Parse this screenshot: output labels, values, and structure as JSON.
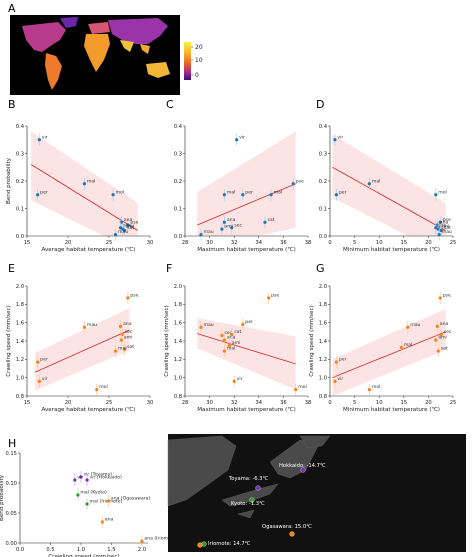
{
  "panel_letters": [
    "A",
    "B",
    "C",
    "D",
    "E",
    "F",
    "G",
    "H"
  ],
  "colorbar": {
    "ticks": [
      "20",
      "10",
      "0"
    ]
  },
  "map_labels": {
    "hokkaido": "Hokkaido: -14.7℃",
    "toyama": "Toyama: -6.3℃",
    "kyoto": "Kyoto: -1.3℃",
    "ogasawara": "Ogasawara: 15.0℃",
    "iriomote": "Iriomote: 14.7℃"
  },
  "colors": {
    "blue": "#1f77b4",
    "orange": "#ff7f0e",
    "fit": "#d62728",
    "band": "#fde4e4",
    "errbar": "#a6cff0",
    "errbar_orange": "#f9c797",
    "purple": "#7b2fbe",
    "green": "#2ca02c"
  },
  "chart_data": [
    {
      "id": "B",
      "type": "scatter",
      "xlabel": "Average habitat temperature (℃)",
      "ylabel": "Bend probability",
      "xlim": [
        15,
        30
      ],
      "ylim": [
        0,
        0.4
      ],
      "xticks": [
        "15",
        "20",
        "25",
        "30"
      ],
      "yticks": [
        "0.0",
        "0.1",
        "0.2",
        "0.3",
        "0.4"
      ],
      "point_labels": [
        "vir",
        "mol",
        "mal",
        "per",
        "ana",
        "pse",
        "sec",
        "ami",
        "sat",
        "mau"
      ],
      "x": [
        16.5,
        25.5,
        22.0,
        16.3,
        26.5,
        27.3,
        26.4,
        26.7,
        26.9,
        25.8
      ],
      "y": [
        0.35,
        0.15,
        0.19,
        0.15,
        0.05,
        0.04,
        0.03,
        0.025,
        0.02,
        0.005
      ],
      "fit": [
        [
          15.5,
          0.26
        ],
        [
          28.5,
          0.02
        ]
      ],
      "band": [
        [
          15.5,
          0.13,
          0.38
        ],
        [
          28.5,
          -0.06,
          0.12
        ]
      ]
    },
    {
      "id": "C",
      "type": "scatter",
      "xlabel": "Maximum habitat temperature (℃)",
      "ylabel": "",
      "xlim": [
        28,
        38
      ],
      "ylim": [
        0,
        0.4
      ],
      "xticks": [
        "28",
        "30",
        "32",
        "34",
        "36",
        "38"
      ],
      "yticks": [
        "0.0",
        "0.1",
        "0.2",
        "0.3",
        "0.4"
      ],
      "point_labels": [
        "vir",
        "mal",
        "pse",
        "per",
        "ana",
        "sat",
        "sec",
        "ami",
        "mau",
        "mol"
      ],
      "x": [
        32.2,
        31.2,
        36.8,
        32.7,
        31.2,
        34.5,
        31.8,
        31.0,
        29.3,
        35.0
      ],
      "y": [
        0.35,
        0.15,
        0.19,
        0.15,
        0.05,
        0.05,
        0.03,
        0.025,
        0.005,
        0.15
      ],
      "fit": [
        [
          29.0,
          0.04
        ],
        [
          37.0,
          0.19
        ]
      ],
      "band": [
        [
          29.0,
          -0.05,
          0.16
        ],
        [
          37.0,
          0.03,
          0.38
        ]
      ]
    },
    {
      "id": "D",
      "type": "scatter",
      "xlabel": "Minimum habitat temperature (℃)",
      "ylabel": "",
      "xlim": [
        0,
        25
      ],
      "ylim": [
        0,
        0.4
      ],
      "xticks": [
        "0",
        "5",
        "10",
        "15",
        "20",
        "25"
      ],
      "yticks": [
        "0.0",
        "0.1",
        "0.2",
        "0.3",
        "0.4"
      ],
      "point_labels": [
        "vir",
        "mal",
        "mol",
        "per",
        "pse",
        "ana",
        "sec",
        "ami",
        "sat",
        "mau"
      ],
      "x": [
        1.0,
        8.0,
        21.5,
        1.3,
        22.4,
        21.8,
        21.5,
        22.0,
        22.6,
        22.2
      ],
      "y": [
        0.35,
        0.19,
        0.15,
        0.15,
        0.05,
        0.04,
        0.03,
        0.025,
        0.02,
        0.005
      ],
      "fit": [
        [
          0.5,
          0.25
        ],
        [
          23.5,
          0.02
        ]
      ],
      "band": [
        [
          0.5,
          0.14,
          0.37
        ],
        [
          23.5,
          -0.07,
          0.12
        ]
      ]
    },
    {
      "id": "E",
      "type": "scatter",
      "xlabel": "Average habitat temperature (℃)",
      "ylabel": "Crawling speed (mm/sec)",
      "xlim": [
        15,
        30
      ],
      "ylim": [
        0.8,
        2.0
      ],
      "xticks": [
        "15",
        "20",
        "25",
        "30"
      ],
      "yticks": [
        "0.8",
        "1.0",
        "1.2",
        "1.4",
        "1.6",
        "1.8",
        "2.0"
      ],
      "point_labels": [
        "pse",
        "mau",
        "ana",
        "sec",
        "ami",
        "sat",
        "mal",
        "per",
        "vir",
        "mol"
      ],
      "x": [
        27.3,
        22.0,
        26.4,
        26.6,
        26.5,
        26.9,
        25.8,
        16.3,
        16.5,
        23.5
      ],
      "y": [
        1.87,
        1.55,
        1.56,
        1.47,
        1.41,
        1.31,
        1.29,
        1.17,
        0.96,
        0.87
      ],
      "fit": [
        [
          16.0,
          1.06
        ],
        [
          27.5,
          1.52
        ]
      ],
      "band": [
        [
          16.0,
          0.86,
          1.27
        ],
        [
          27.5,
          1.3,
          1.76
        ]
      ]
    },
    {
      "id": "F",
      "type": "scatter",
      "xlabel": "Maximum habitat temperature (℃)",
      "ylabel": "Crawling speed (mm/sec)",
      "xlim": [
        28,
        38
      ],
      "ylim": [
        0.8,
        2.0
      ],
      "xticks": [
        "28",
        "30",
        "32",
        "34",
        "36",
        "38"
      ],
      "yticks": [
        "0.8",
        "1.0",
        "1.2",
        "1.4",
        "1.6",
        "1.8",
        "2.0"
      ],
      "point_labels": [
        "pse",
        "mau",
        "per",
        "ana",
        "sec",
        "sat",
        "ami",
        "mal",
        "vir",
        "mol"
      ],
      "x": [
        34.8,
        29.3,
        32.7,
        31.2,
        31.0,
        31.8,
        31.6,
        31.2,
        32.0,
        37.0
      ],
      "y": [
        1.87,
        1.55,
        1.58,
        1.41,
        1.46,
        1.47,
        1.35,
        1.29,
        0.96,
        0.87
      ],
      "fit": [
        [
          29.0,
          1.48
        ],
        [
          37.0,
          1.15
        ]
      ],
      "band": [
        [
          29.0,
          1.32,
          1.65
        ],
        [
          37.0,
          0.87,
          1.45
        ]
      ]
    },
    {
      "id": "G",
      "type": "scatter",
      "xlabel": "Minimum habitat temperature (℃)",
      "ylabel": "Crawling speed (mm/sec)",
      "xlim": [
        0,
        25
      ],
      "ylim": [
        0.8,
        2.0
      ],
      "xticks": [
        "0",
        "5",
        "10",
        "15",
        "20",
        "25"
      ],
      "yticks": [
        "0.8",
        "1.0",
        "1.2",
        "1.4",
        "1.6",
        "1.8",
        "2.0"
      ],
      "point_labels": [
        "pse",
        "mau",
        "ana",
        "sec",
        "ami",
        "sat",
        "per",
        "mal",
        "vir",
        "mol"
      ],
      "x": [
        22.4,
        15.8,
        21.8,
        22.6,
        21.5,
        22.0,
        1.3,
        14.5,
        1.0,
        8.0
      ],
      "y": [
        1.87,
        1.55,
        1.56,
        1.47,
        1.41,
        1.29,
        1.17,
        1.33,
        0.96,
        0.87
      ],
      "fit": [
        [
          0.5,
          1.0
        ],
        [
          23.5,
          1.5
        ]
      ],
      "band": [
        [
          0.5,
          0.8,
          1.2
        ],
        [
          23.5,
          1.3,
          1.75
        ]
      ]
    },
    {
      "id": "H",
      "type": "scatter",
      "xlabel": "Crawling speed (mm/sec)",
      "ylabel": "Bend probability",
      "xlim": [
        0,
        2.1
      ],
      "ylim": [
        0,
        0.15
      ],
      "xticks": [
        "0.0",
        "0.5",
        "1.0",
        "1.5",
        "2.0"
      ],
      "yticks": [
        "0.00",
        "0.05",
        "0.10",
        "0.15"
      ],
      "point_labels": [
        "vir (Toyama)",
        "vir (Hokkaido)",
        "vir",
        "mal (Kyoto)",
        "mal (Iriomote)",
        "ana (Ogasawara)",
        "ana",
        "ana (Iriomote)"
      ],
      "x": [
        1.0,
        1.1,
        0.9,
        0.95,
        1.1,
        1.45,
        1.35,
        2.0
      ],
      "y": [
        0.11,
        0.105,
        0.105,
        0.08,
        0.065,
        0.07,
        0.035,
        0.003
      ]
    }
  ]
}
